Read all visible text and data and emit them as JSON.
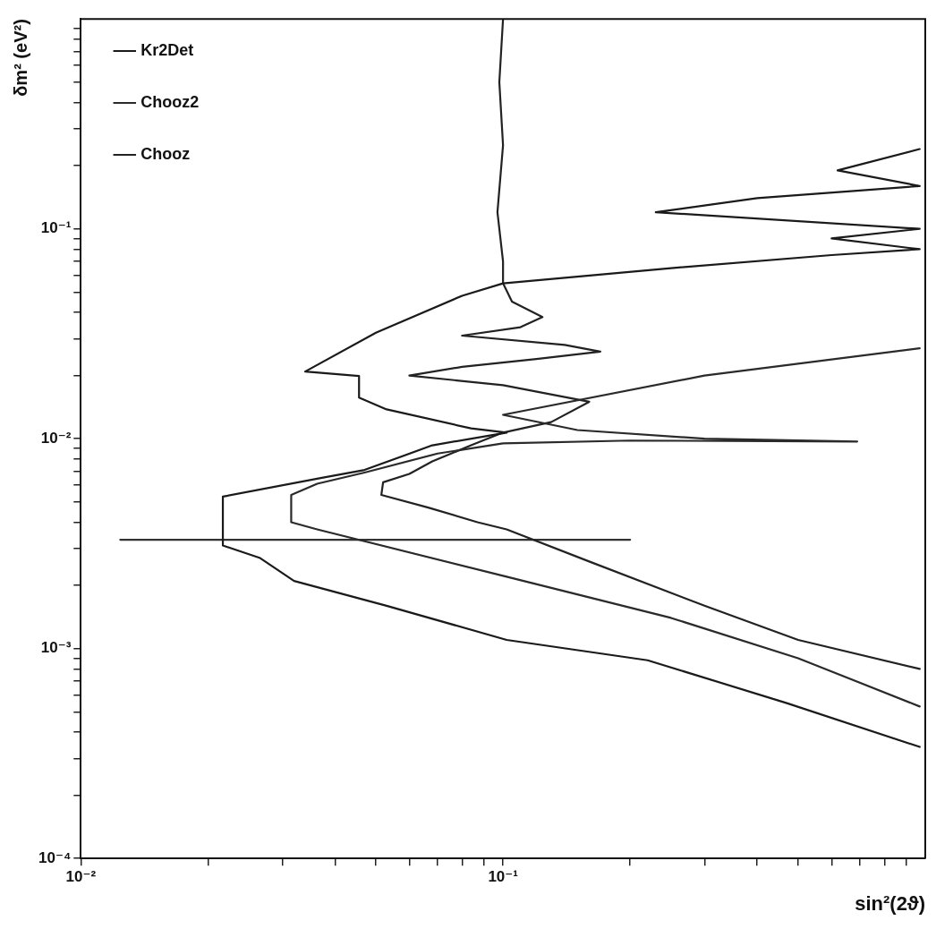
{
  "chart_data": {
    "type": "line",
    "xlabel": "sin²(2ϑ)",
    "ylabel": "δm² (eV²)",
    "log": "xy",
    "grid": false,
    "legend": "top left",
    "marker": "none",
    "line_style": "solid",
    "xlim": [
      0.01,
      1
    ],
    "ylim": [
      0.0001,
      1
    ],
    "xticks": [
      {
        "value": 0.01,
        "label": "10⁻²"
      },
      {
        "value": 0.02,
        "label": null
      },
      {
        "value": 0.03,
        "label": null
      },
      {
        "value": 0.04,
        "label": null
      },
      {
        "value": 0.05,
        "label": null
      },
      {
        "value": 0.06,
        "label": null
      },
      {
        "value": 0.07,
        "label": null
      },
      {
        "value": 0.08,
        "label": null
      },
      {
        "value": 0.09,
        "label": null
      },
      {
        "value": 0.1,
        "label": "10⁻¹"
      },
      {
        "value": 0.2,
        "label": null
      },
      {
        "value": 0.3,
        "label": null
      },
      {
        "value": 0.4,
        "label": null
      },
      {
        "value": 0.5,
        "label": null
      },
      {
        "value": 0.6,
        "label": null
      },
      {
        "value": 0.7,
        "label": null
      },
      {
        "value": 0.8,
        "label": null
      },
      {
        "value": 0.9,
        "label": null
      }
    ],
    "yticks": [
      {
        "value": 0.0001,
        "label": "10⁻⁴"
      },
      {
        "value": 0.0002,
        "label": null
      },
      {
        "value": 0.0003,
        "label": null
      },
      {
        "value": 0.0004,
        "label": null
      },
      {
        "value": 0.0005,
        "label": null
      },
      {
        "value": 0.0006,
        "label": null
      },
      {
        "value": 0.0007,
        "label": null
      },
      {
        "value": 0.0008,
        "label": null
      },
      {
        "value": 0.0009,
        "label": null
      },
      {
        "value": 0.001,
        "label": "10⁻³"
      },
      {
        "value": 0.002,
        "label": null
      },
      {
        "value": 0.003,
        "label": null
      },
      {
        "value": 0.004,
        "label": null
      },
      {
        "value": 0.005,
        "label": null
      },
      {
        "value": 0.006,
        "label": null
      },
      {
        "value": 0.007,
        "label": null
      },
      {
        "value": 0.008,
        "label": null
      },
      {
        "value": 0.009,
        "label": null
      },
      {
        "value": 0.01,
        "label": "10⁻²"
      },
      {
        "value": 0.02,
        "label": null
      },
      {
        "value": 0.03,
        "label": null
      },
      {
        "value": 0.04,
        "label": null
      },
      {
        "value": 0.05,
        "label": null
      },
      {
        "value": 0.06,
        "label": null
      },
      {
        "value": 0.07,
        "label": null
      },
      {
        "value": 0.08,
        "label": null
      },
      {
        "value": 0.09,
        "label": null
      },
      {
        "value": 0.1,
        "label": "10⁻¹"
      },
      {
        "value": 0.2,
        "label": null
      },
      {
        "value": 0.3,
        "label": null
      },
      {
        "value": 0.4,
        "label": null
      },
      {
        "value": 0.5,
        "label": null
      },
      {
        "value": 0.6,
        "label": null
      },
      {
        "value": 0.7,
        "label": null
      },
      {
        "value": 0.8,
        "label": null
      },
      {
        "value": 0.9,
        "label": null
      }
    ],
    "series": [
      {
        "name": "Kr2Det",
        "color": "#1a1a1a",
        "x": [
          0.97,
          0.47,
          0.22,
          0.102,
          0.053,
          0.032,
          0.0266,
          0.0217,
          0.0217,
          0.037,
          0.047,
          0.068,
          0.102,
          0.084,
          0.053,
          0.0456,
          0.0456,
          0.034,
          0.05,
          0.08,
          0.1,
          0.25,
          0.6,
          0.97,
          0.6,
          0.97,
          0.23,
          0.4,
          0.97,
          0.62,
          0.97
        ],
        "values": [
          0.00034,
          0.00055,
          0.00088,
          0.0011,
          0.0016,
          0.0021,
          0.0027,
          0.0031,
          0.0053,
          0.0065,
          0.0071,
          0.0093,
          0.0107,
          0.0112,
          0.0138,
          0.0157,
          0.0199,
          0.0209,
          0.032,
          0.048,
          0.055,
          0.065,
          0.075,
          0.08,
          0.09,
          0.1,
          0.12,
          0.14,
          0.16,
          0.19,
          0.24
        ]
      },
      {
        "name": "Chooz2",
        "color": "#2a2a2a",
        "x": [
          0.97,
          0.5,
          0.25,
          0.102,
          0.0363,
          0.0315,
          0.0315,
          0.0363,
          0.047,
          0.07,
          0.1,
          0.2,
          0.69,
          0.3,
          0.15,
          0.1,
          0.3,
          0.97
        ],
        "values": [
          0.00053,
          0.0009,
          0.0014,
          0.0022,
          0.0037,
          0.004,
          0.0054,
          0.0061,
          0.0069,
          0.0085,
          0.0095,
          0.0098,
          0.0097,
          0.01,
          0.011,
          0.013,
          0.02,
          0.027
        ]
      },
      {
        "name": "Chooz",
        "color": "#222222",
        "x": [
          0.1,
          0.098,
          0.1,
          0.097,
          0.1,
          0.1,
          0.105,
          0.124,
          0.11,
          0.08,
          0.14,
          0.17,
          0.12,
          0.08,
          0.06,
          0.1,
          0.16,
          0.13,
          0.1,
          0.084,
          0.068,
          0.06,
          0.052,
          0.0515,
          0.0665,
          0.087,
          0.102,
          0.16,
          0.3,
          0.5,
          0.97
        ],
        "values": [
          1,
          0.5,
          0.25,
          0.12,
          0.07,
          0.055,
          0.045,
          0.038,
          0.034,
          0.031,
          0.028,
          0.026,
          0.024,
          0.022,
          0.02,
          0.018,
          0.015,
          0.012,
          0.0107,
          0.0093,
          0.0078,
          0.0068,
          0.0062,
          0.0054,
          0.0047,
          0.004,
          0.0037,
          0.0026,
          0.0016,
          0.0011,
          0.0008
        ]
      },
      {
        "color": "#333333",
        "x": [
          0.0124,
          0.2
        ],
        "values": [
          0.0033,
          0.0033
        ]
      }
    ]
  }
}
